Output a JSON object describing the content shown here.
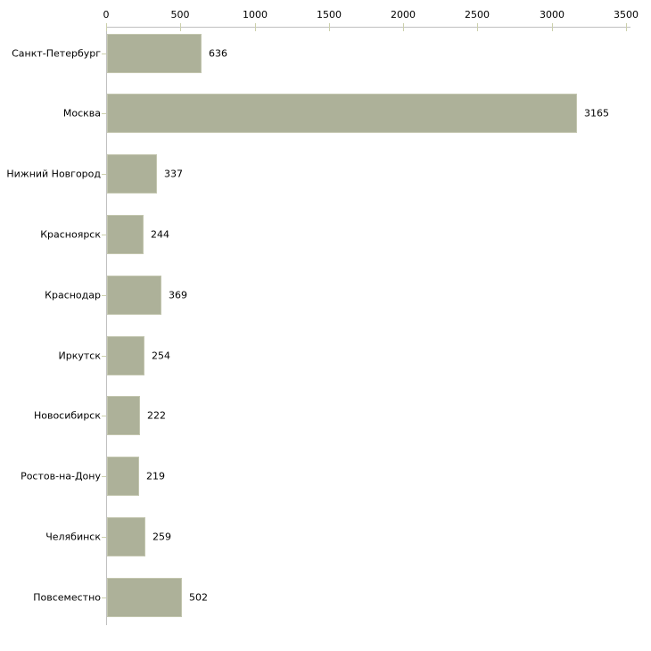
{
  "chart_data": {
    "type": "bar",
    "orientation": "horizontal",
    "title": "",
    "xlabel": "",
    "ylabel": "",
    "categories": [
      "Санкт-Петербург",
      "Москва",
      "Нижний Новгород",
      "Красноярск",
      "Краснодар",
      "Иркутск",
      "Новосибирск",
      "Ростов-на-Дону",
      "Челябинск",
      "Повсеместно"
    ],
    "values": [
      636,
      3165,
      337,
      244,
      369,
      254,
      222,
      219,
      259,
      502
    ],
    "value_labels": [
      "636",
      "3165",
      "337",
      "244",
      "369",
      "254",
      "222",
      "219",
      "259",
      "502"
    ],
    "xlim": [
      0,
      3500
    ],
    "xticks": [
      0,
      500,
      1000,
      1500,
      2000,
      2500,
      3000,
      3500
    ],
    "xtick_labels": [
      "0",
      "500",
      "1000",
      "1500",
      "2000",
      "2500",
      "3000",
      "3500"
    ],
    "grid": false,
    "legend": null,
    "colors": {
      "bar_fill": "#adb199",
      "bar_border": "#c3c6af",
      "axis_line": "#c0c0c0",
      "tick_mark": "#ccd0ac",
      "text": "#000000",
      "background": "#ffffff"
    }
  }
}
